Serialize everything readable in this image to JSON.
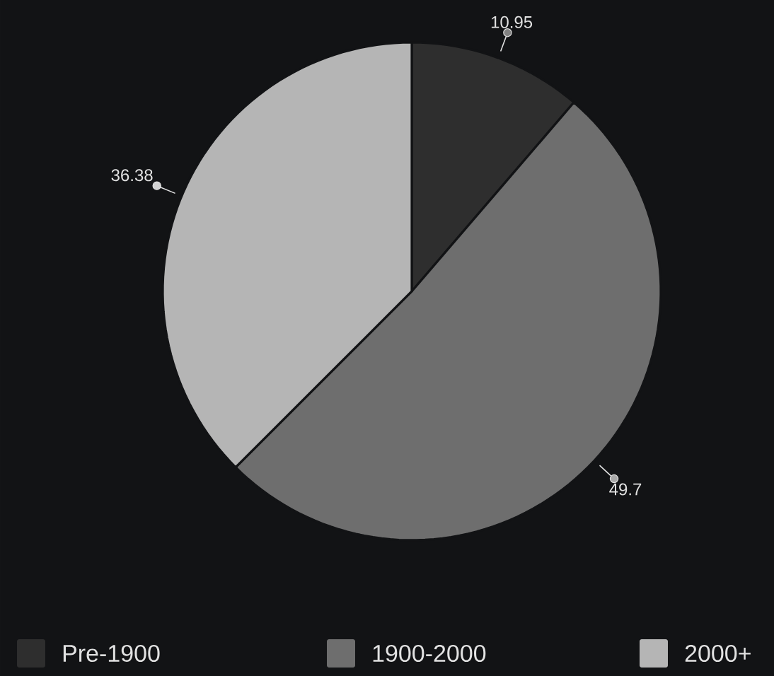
{
  "chart_data": {
    "type": "pie",
    "categories": [
      "Pre-1900",
      "1900-2000",
      "2000+"
    ],
    "values": [
      10.95,
      49.7,
      36.38
    ],
    "colors": [
      "#2e2e2e",
      "#6e6e6e",
      "#b5b5b5"
    ],
    "data_labels": true,
    "legend": "bottom"
  }
}
